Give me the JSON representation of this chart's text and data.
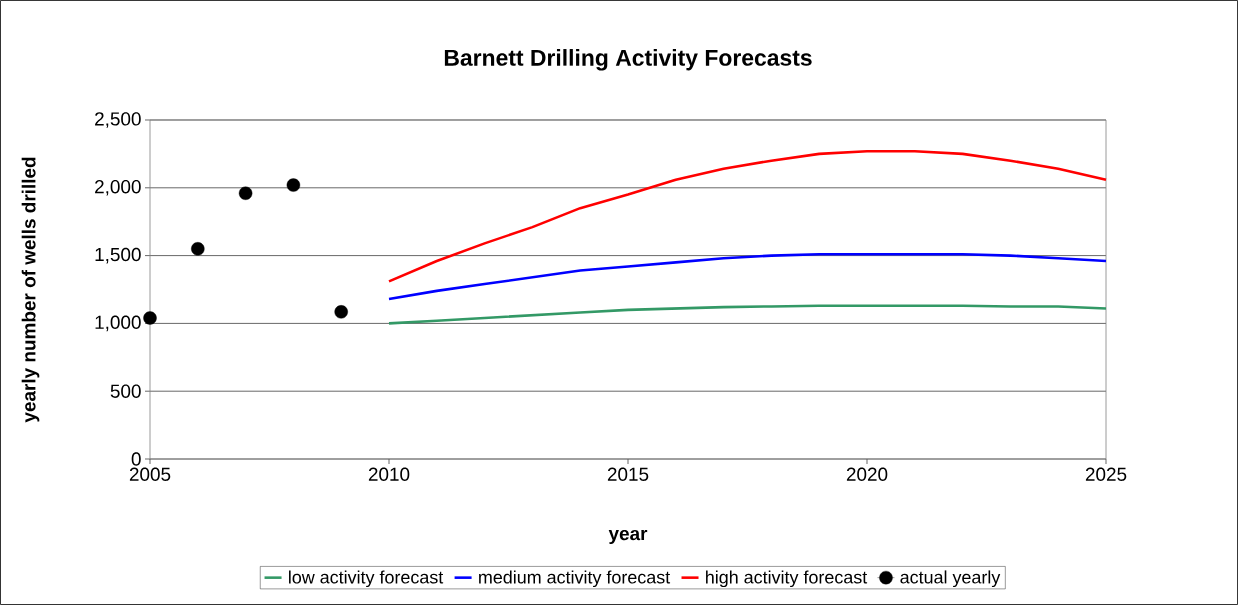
{
  "chart_data": {
    "type": "line",
    "title": "Barnett Drilling Activity Forecasts",
    "xlabel": "year",
    "ylabel": "yearly number of wells drilled",
    "xlim": [
      2005,
      2025
    ],
    "xticks": [
      2005,
      2010,
      2015,
      2020,
      2025
    ],
    "ylim": [
      0,
      2500
    ],
    "yticks": [
      0,
      {
        "value": 500,
        "label": "500"
      },
      {
        "value": 1000,
        "label": "1,000"
      },
      {
        "value": 1500,
        "label": "1,500"
      },
      {
        "value": 2000,
        "label": "2,000"
      },
      {
        "value": 2500,
        "label": "2,500"
      }
    ],
    "grid": "y",
    "legend": "bottom",
    "marker": "none",
    "series": [
      {
        "name": "low activity forecast",
        "color": "#339966",
        "x": [
          2010,
          2011,
          2012,
          2013,
          2014,
          2015,
          2016,
          2017,
          2018,
          2019,
          2020,
          2021,
          2022,
          2023,
          2024,
          2025
        ],
        "values": [
          1000,
          1020,
          1040,
          1060,
          1080,
          1100,
          1110,
          1120,
          1125,
          1130,
          1130,
          1130,
          1130,
          1125,
          1125,
          1110
        ]
      },
      {
        "name": "medium activity forecast",
        "color": "#0000ff",
        "x": [
          2010,
          2011,
          2012,
          2013,
          2014,
          2015,
          2016,
          2017,
          2018,
          2019,
          2020,
          2021,
          2022,
          2023,
          2024,
          2025
        ],
        "values": [
          1180,
          1240,
          1290,
          1340,
          1390,
          1420,
          1450,
          1480,
          1500,
          1510,
          1510,
          1510,
          1510,
          1500,
          1480,
          1460
        ]
      },
      {
        "name": "high activity forecast",
        "color": "#ff0000",
        "x": [
          2010,
          2011,
          2012,
          2013,
          2014,
          2015,
          2016,
          2017,
          2018,
          2019,
          2020,
          2021,
          2022,
          2023,
          2024,
          2025
        ],
        "values": [
          1310,
          1460,
          1590,
          1710,
          1850,
          1950,
          2060,
          2140,
          2200,
          2250,
          2270,
          2270,
          2250,
          2200,
          2140,
          2060
        ]
      },
      {
        "name": "actual yearly",
        "type": "scatter",
        "marker": "circle",
        "color": "#000000",
        "x": [
          2005,
          2006,
          2007,
          2008,
          2009
        ],
        "values": [
          1040,
          1550,
          1960,
          2020,
          1085
        ]
      }
    ]
  }
}
